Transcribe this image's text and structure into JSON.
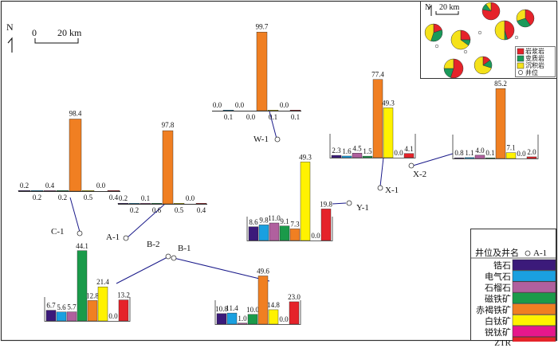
{
  "colors": {
    "background": "#ffffff",
    "frame": "#333333",
    "connector": "#1a1a8a",
    "minerals": [
      "#3b1a7a",
      "#1aa0e0",
      "#b0609e",
      "#1a9a4a",
      "#f07f22",
      "#fff200",
      "#e6178c",
      "#e5232a"
    ],
    "pie_igneous": "#e5232a",
    "pie_metamorphic": "#1a9a5a",
    "pie_sedimentary": "#f5e21a"
  },
  "north_main": "N",
  "scale_main": {
    "zero": "0",
    "label": "20 km"
  },
  "inset": {
    "north": "N",
    "scale_label": "20 km",
    "legend": [
      {
        "label": "岩浆岩",
        "icon": "red-square-icon"
      },
      {
        "label": "变质岩",
        "icon": "green-square-icon"
      },
      {
        "label": "沉积岩",
        "icon": "yellow-square-icon"
      },
      {
        "label": "井位",
        "icon": "well-circle-icon"
      }
    ],
    "pies": [
      {
        "name": "inset-pie-1",
        "igneous": 0.78,
        "metamorphic": 0.12,
        "sedimentary": 0.1
      },
      {
        "name": "inset-pie-2",
        "igneous": 0.2,
        "metamorphic": 0.35,
        "sedimentary": 0.45
      },
      {
        "name": "inset-pie-3",
        "igneous": 0.25,
        "metamorphic": 0.1,
        "sedimentary": 0.65
      },
      {
        "name": "inset-pie-4",
        "igneous": 0.4,
        "metamorphic": 0.3,
        "sedimentary": 0.3
      },
      {
        "name": "inset-pie-5",
        "igneous": 0.45,
        "metamorphic": 0.05,
        "sedimentary": 0.5
      },
      {
        "name": "inset-pie-6",
        "igneous": 0.55,
        "metamorphic": 0.2,
        "sedimentary": 0.25
      },
      {
        "name": "inset-pie-7",
        "igneous": 0.15,
        "metamorphic": 0.15,
        "sedimentary": 0.7
      }
    ]
  },
  "main_legend": {
    "header": "井位及井名",
    "well_example": "A-1",
    "items": [
      "锆石",
      "电气石",
      "石榴石",
      "磁铁矿",
      "赤褐铁矿",
      "白钛矿",
      "锐钛矿",
      "ZTR"
    ]
  },
  "wells": [
    {
      "name": "C-1",
      "values": [
        0.2,
        0.2,
        0.4,
        0.2,
        98.4,
        0.5,
        0.0,
        0.4
      ]
    },
    {
      "name": "A-1",
      "values": [
        0.2,
        0.2,
        0.1,
        0.6,
        97.8,
        0.5,
        0.0,
        0.4
      ]
    },
    {
      "name": "W-1",
      "values": [
        0.0,
        0.1,
        0.0,
        0.0,
        99.7,
        0.1,
        0.0,
        0.1
      ]
    },
    {
      "name": "X-1",
      "values": [
        2.3,
        1.6,
        4.5,
        1.5,
        77.4,
        49.3,
        0.0,
        4.1
      ]
    },
    {
      "name": "X-2",
      "values": [
        0.8,
        1.1,
        4.0,
        0.1,
        85.2,
        7.1,
        0.0,
        2.0
      ]
    },
    {
      "name": "Y-1",
      "values": [
        8.6,
        9.8,
        11.0,
        9.1,
        7.3,
        49.3,
        0.0,
        19.8
      ]
    },
    {
      "name": "B-1",
      "values": [
        10.8,
        11.4,
        1.0,
        10.0,
        49.6,
        14.8,
        0.0,
        23.0
      ]
    },
    {
      "name": "B-2",
      "values": [
        6.7,
        5.6,
        5.7,
        44.1,
        12.8,
        21.4,
        0.0,
        13.2
      ]
    }
  ]
}
